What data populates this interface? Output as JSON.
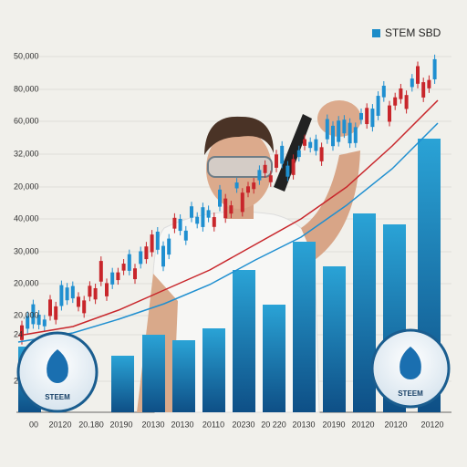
{
  "legend": "STEM SBD",
  "y_labels": [
    "50,000",
    "80,000",
    "60,000",
    "32,000",
    "20,000",
    "40,000",
    "30,000",
    "20,000",
    "20,000",
    "24",
    "2"
  ],
  "x_labels": [
    "00",
    "20120",
    "20.180",
    "20190",
    "20130",
    "20130",
    "20110",
    "20230",
    "20 220",
    "20130",
    "20190",
    "20120",
    "20120",
    "20120"
  ],
  "logos": [
    "STEEM",
    "STEEM"
  ]
}
